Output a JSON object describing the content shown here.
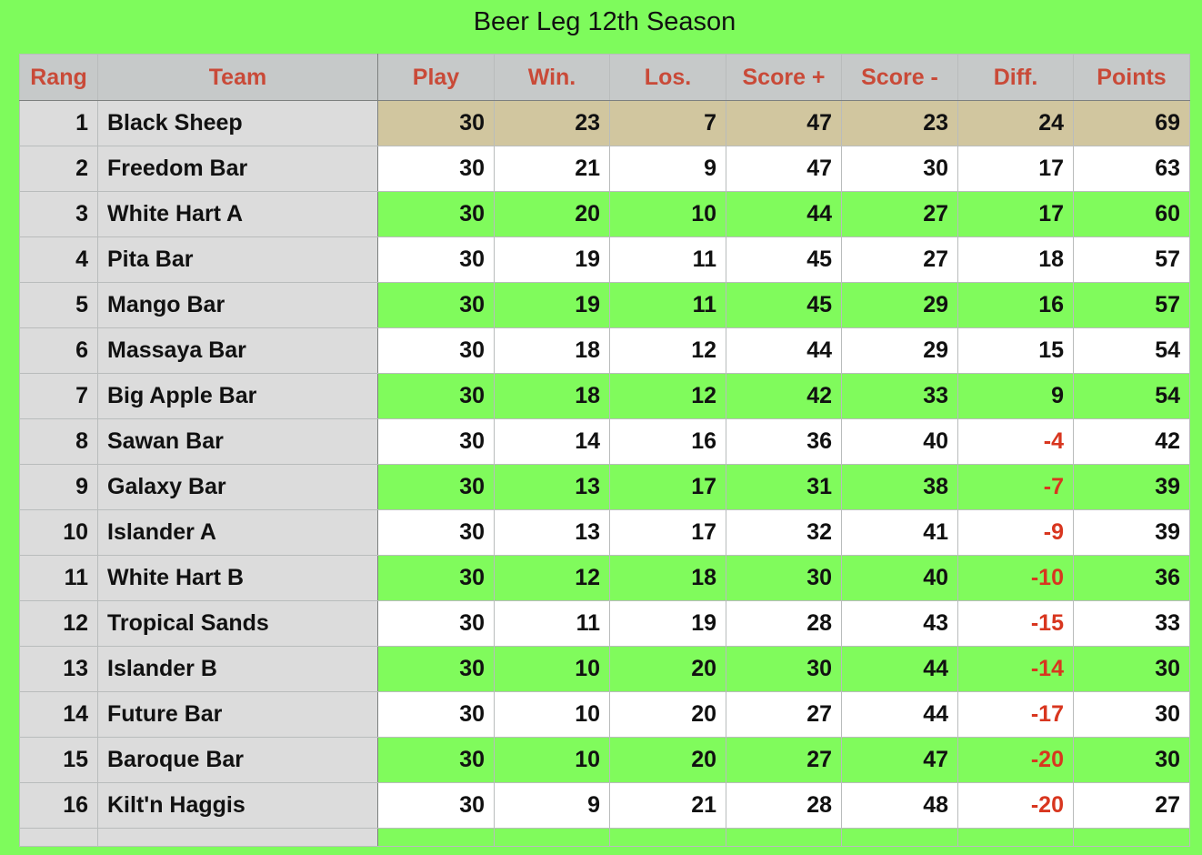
{
  "title": "Beer Leg 12th Season",
  "columns": [
    "Rang",
    "Team",
    "Play",
    "Win.",
    "Los.",
    "Score +",
    "Score -",
    "Diff.",
    "Points"
  ],
  "rows": [
    {
      "rank": "1",
      "team": "Black Sheep",
      "play": "30",
      "win": "23",
      "los": "7",
      "score_plus": "47",
      "score_minus": "23",
      "diff": "24",
      "points": "69"
    },
    {
      "rank": "2",
      "team": "Freedom Bar",
      "play": "30",
      "win": "21",
      "los": "9",
      "score_plus": "47",
      "score_minus": "30",
      "diff": "17",
      "points": "63"
    },
    {
      "rank": "3",
      "team": "White Hart A",
      "play": "30",
      "win": "20",
      "los": "10",
      "score_plus": "44",
      "score_minus": "27",
      "diff": "17",
      "points": "60"
    },
    {
      "rank": "4",
      "team": "Pita Bar",
      "play": "30",
      "win": "19",
      "los": "11",
      "score_plus": "45",
      "score_minus": "27",
      "diff": "18",
      "points": "57"
    },
    {
      "rank": "5",
      "team": "Mango Bar",
      "play": "30",
      "win": "19",
      "los": "11",
      "score_plus": "45",
      "score_minus": "29",
      "diff": "16",
      "points": "57"
    },
    {
      "rank": "6",
      "team": "Massaya Bar",
      "play": "30",
      "win": "18",
      "los": "12",
      "score_plus": "44",
      "score_minus": "29",
      "diff": "15",
      "points": "54"
    },
    {
      "rank": "7",
      "team": "Big Apple Bar",
      "play": "30",
      "win": "18",
      "los": "12",
      "score_plus": "42",
      "score_minus": "33",
      "diff": "9",
      "points": "54"
    },
    {
      "rank": "8",
      "team": "Sawan Bar",
      "play": "30",
      "win": "14",
      "los": "16",
      "score_plus": "36",
      "score_minus": "40",
      "diff": "-4",
      "points": "42"
    },
    {
      "rank": "9",
      "team": "Galaxy Bar",
      "play": "30",
      "win": "13",
      "los": "17",
      "score_plus": "31",
      "score_minus": "38",
      "diff": "-7",
      "points": "39"
    },
    {
      "rank": "10",
      "team": "Islander A",
      "play": "30",
      "win": "13",
      "los": "17",
      "score_plus": "32",
      "score_minus": "41",
      "diff": "-9",
      "points": "39"
    },
    {
      "rank": "11",
      "team": "White Hart B",
      "play": "30",
      "win": "12",
      "los": "18",
      "score_plus": "30",
      "score_minus": "40",
      "diff": "-10",
      "points": "36"
    },
    {
      "rank": "12",
      "team": "Tropical Sands",
      "play": "30",
      "win": "11",
      "los": "19",
      "score_plus": "28",
      "score_minus": "43",
      "diff": "-15",
      "points": "33"
    },
    {
      "rank": "13",
      "team": "Islander B",
      "play": "30",
      "win": "10",
      "los": "20",
      "score_plus": "30",
      "score_minus": "44",
      "diff": "-14",
      "points": "30"
    },
    {
      "rank": "14",
      "team": "Future Bar",
      "play": "30",
      "win": "10",
      "los": "20",
      "score_plus": "27",
      "score_minus": "44",
      "diff": "-17",
      "points": "30"
    },
    {
      "rank": "15",
      "team": "Baroque Bar",
      "play": "30",
      "win": "10",
      "los": "20",
      "score_plus": "27",
      "score_minus": "47",
      "diff": "-20",
      "points": "30"
    },
    {
      "rank": "16",
      "team": "Kilt'n Haggis",
      "play": "30",
      "win": "9",
      "los": "21",
      "score_plus": "28",
      "score_minus": "48",
      "diff": "-20",
      "points": "27"
    }
  ],
  "colors": {
    "background": "#7efb5c",
    "header_bg": "#c6c9c9",
    "header_text": "#c94a38",
    "leader_row": "#d1c69f",
    "green_row": "#80fb5c",
    "white_row": "#ffffff",
    "negative_diff": "#d8361f"
  }
}
